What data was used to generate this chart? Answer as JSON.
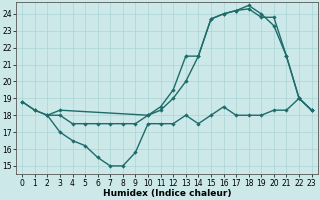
{
  "xlabel": "Humidex (Indice chaleur)",
  "xlim": [
    -0.5,
    23.5
  ],
  "ylim": [
    14.5,
    24.7
  ],
  "xticks": [
    0,
    1,
    2,
    3,
    4,
    5,
    6,
    7,
    8,
    9,
    10,
    11,
    12,
    13,
    14,
    15,
    16,
    17,
    18,
    19,
    20,
    21,
    22,
    23
  ],
  "yticks": [
    15,
    16,
    17,
    18,
    19,
    20,
    21,
    22,
    23,
    24
  ],
  "background_color": "#cce8e8",
  "grid_color": "#aad4d4",
  "line_color": "#1e6b6b",
  "line_width": 1.0,
  "marker": "D",
  "marker_size": 2.2,
  "line1_x": [
    0,
    1,
    2,
    3,
    4,
    5,
    6,
    7,
    8,
    9,
    10,
    11,
    12,
    13,
    14,
    15,
    16,
    17,
    18,
    19,
    20,
    21,
    22,
    23
  ],
  "line1_y": [
    18.8,
    18.3,
    18.0,
    18.0,
    17.5,
    17.5,
    17.5,
    17.5,
    17.5,
    17.5,
    18.0,
    18.3,
    19.0,
    20.0,
    21.5,
    23.7,
    24.0,
    24.2,
    24.5,
    24.0,
    23.3,
    21.5,
    19.0,
    18.3
  ],
  "line2_x": [
    0,
    1,
    2,
    3,
    4,
    5,
    6,
    7,
    8,
    9,
    10,
    11,
    12,
    13,
    14,
    15,
    16,
    17,
    18,
    19,
    20,
    21,
    22,
    23
  ],
  "line2_y": [
    18.8,
    18.3,
    18.0,
    17.0,
    16.5,
    16.2,
    15.5,
    15.0,
    15.0,
    15.8,
    17.5,
    17.5,
    17.5,
    18.0,
    17.5,
    18.0,
    18.5,
    18.0,
    18.0,
    18.0,
    18.3,
    18.3,
    19.0,
    18.3
  ],
  "line3_x": [
    2,
    3,
    10,
    11,
    12,
    13,
    14,
    15,
    16,
    17,
    18,
    19,
    20,
    21,
    22,
    23
  ],
  "line3_y": [
    18.0,
    18.3,
    18.0,
    18.5,
    19.5,
    21.5,
    21.5,
    23.7,
    24.0,
    24.2,
    24.3,
    23.8,
    23.8,
    21.5,
    19.0,
    18.3
  ]
}
